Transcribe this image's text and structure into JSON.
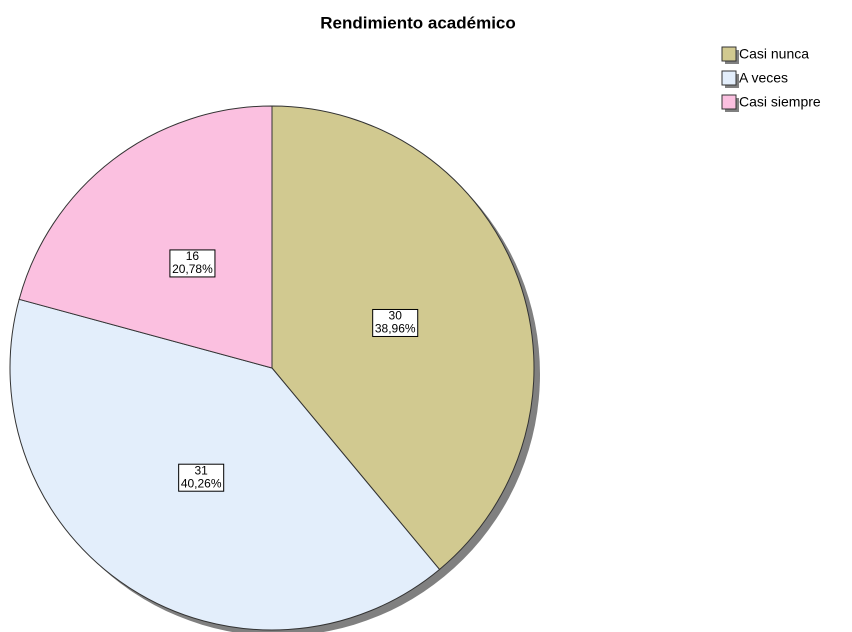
{
  "chart_data": {
    "type": "pie",
    "title": "Rendimiento académico",
    "categories": [
      "Casi nunca",
      "A veces",
      "Casi siempre"
    ],
    "values": [
      30,
      31,
      16
    ],
    "percents": [
      38.96,
      40.26,
      20.78
    ],
    "percent_labels": [
      "38,96%",
      "40,26%",
      "20,78%"
    ],
    "colors": [
      "#d1c990",
      "#e3eefb",
      "#fbc0e0"
    ],
    "legend": "top-right"
  }
}
